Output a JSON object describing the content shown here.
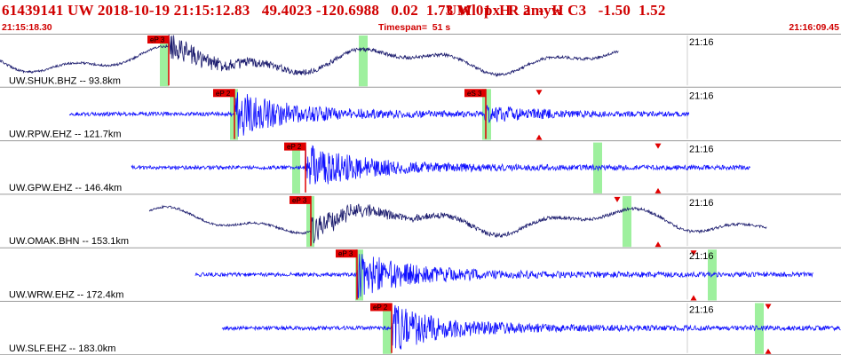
{
  "header": {
    "event_line": "61439141 UW 2018-10-19 21:15:12.83   49.4023 -120.6988   0.02  1.73 Ml  px  R amyw",
    "event_subline": "UW 01  H   2  -  H C3   -1.50  1.52",
    "start_time": "21:15:18.30",
    "timespan": "Timespan=  51 s",
    "end_time": "21:16:09.45"
  },
  "colors": {
    "header_text": "#d00000",
    "trace_dark": "#1c1c6e",
    "trace_blue": "#1010ff",
    "pick_fill": "#e00000",
    "window_fill": "#9ef09e",
    "time_marker_line": "#cfcfcf",
    "panel_border": "#9a9a9a"
  },
  "panels": [
    {
      "station": "UW.SHUK.BHZ -- 93.8km",
      "time_label": "21:16",
      "trace_color": "dark",
      "picks": [
        {
          "label": "eP 3"
        }
      ],
      "triangles": []
    },
    {
      "station": "UW.RPW.EHZ -- 121.7km",
      "time_label": "21:16",
      "trace_color": "blue",
      "picks": [
        {
          "label": "eP 2"
        },
        {
          "label": "eS 3"
        }
      ],
      "triangles": [
        "down",
        "up"
      ]
    },
    {
      "station": "UW.GPW.EHZ -- 146.4km",
      "time_label": "21:16",
      "trace_color": "blue",
      "picks": [
        {
          "label": "eP 2"
        }
      ],
      "triangles": [
        "down",
        "up"
      ]
    },
    {
      "station": "UW.OMAK.BHN -- 153.1km",
      "time_label": "21:16",
      "trace_color": "dark",
      "picks": [
        {
          "label": "eP 3"
        }
      ],
      "triangles": [
        "down",
        "up"
      ]
    },
    {
      "station": "UW.WRW.EHZ -- 172.4km",
      "time_label": "21:16",
      "trace_color": "blue",
      "picks": [
        {
          "label": "eP 3"
        }
      ],
      "triangles": [
        "down",
        "up"
      ]
    },
    {
      "station": "UW.SLF.EHZ -- 183.0km",
      "time_label": "21:16",
      "trace_color": "blue",
      "picks": [
        {
          "label": "eP 2"
        }
      ],
      "triangles": [
        "down",
        "up"
      ]
    }
  ]
}
